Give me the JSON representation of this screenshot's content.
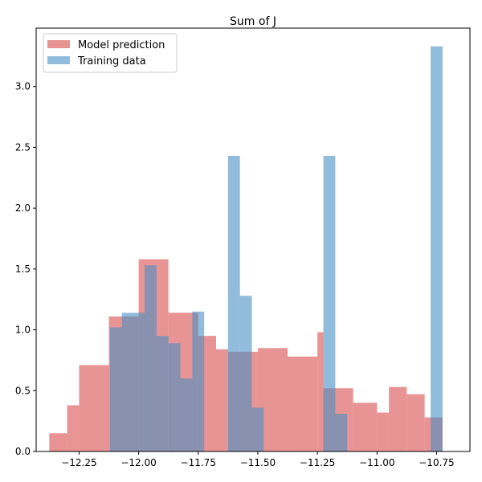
{
  "chart_data": {
    "type": "histogram",
    "title": "Sum of J",
    "xlabel": "",
    "ylabel": "",
    "xlim": [
      -12.43,
      -10.61
    ],
    "ylim": [
      0,
      3.48
    ],
    "grid": false,
    "legend_position": "top-left",
    "x_ticks": [
      -12.25,
      -12.0,
      -11.75,
      -11.5,
      -11.25,
      -11.0,
      -10.75
    ],
    "x_tick_labels": [
      "−12.25",
      "−12.00",
      "−11.75",
      "−11.50",
      "−11.25",
      "−11.00",
      "−10.75"
    ],
    "y_ticks": [
      0.0,
      0.5,
      1.0,
      1.5,
      2.0,
      2.5,
      3.0
    ],
    "y_tick_labels": [
      "0.0",
      "0.5",
      "1.0",
      "1.5",
      "2.0",
      "2.5",
      "3.0"
    ],
    "series": [
      {
        "name": "Model prediction",
        "color": "#e06666",
        "opacity": 0.7,
        "bins": [
          {
            "x0": -12.375,
            "x1": -12.3,
            "value": 0.15
          },
          {
            "x0": -12.3,
            "x1": -12.25,
            "value": 0.38
          },
          {
            "x0": -12.25,
            "x1": -12.125,
            "value": 0.71
          },
          {
            "x0": -12.125,
            "x1": -12.0,
            "value": 1.11
          },
          {
            "x0": -12.0,
            "x1": -11.875,
            "value": 1.58
          },
          {
            "x0": -11.875,
            "x1": -11.75,
            "value": 1.14
          },
          {
            "x0": -11.75,
            "x1": -11.675,
            "value": 0.95
          },
          {
            "x0": -11.675,
            "x1": -11.625,
            "value": 0.84
          },
          {
            "x0": -11.625,
            "x1": -11.5,
            "value": 0.82
          },
          {
            "x0": -11.5,
            "x1": -11.375,
            "value": 0.85
          },
          {
            "x0": -11.375,
            "x1": -11.25,
            "value": 0.78
          },
          {
            "x0": -11.25,
            "x1": -11.225,
            "value": 0.98
          },
          {
            "x0": -11.225,
            "x1": -11.1,
            "value": 0.52
          },
          {
            "x0": -11.1,
            "x1": -11.0,
            "value": 0.4
          },
          {
            "x0": -11.0,
            "x1": -10.95,
            "value": 0.32
          },
          {
            "x0": -10.95,
            "x1": -10.875,
            "value": 0.53
          },
          {
            "x0": -10.875,
            "x1": -10.8,
            "value": 0.47
          },
          {
            "x0": -10.8,
            "x1": -10.725,
            "value": 0.28
          }
        ]
      },
      {
        "name": "Training data",
        "color": "#4a90c4",
        "opacity": 0.6,
        "bins": [
          {
            "x0": -12.12,
            "x1": -12.07,
            "value": 1.02
          },
          {
            "x0": -12.07,
            "x1": -11.975,
            "value": 1.14
          },
          {
            "x0": -11.975,
            "x1": -11.925,
            "value": 1.53
          },
          {
            "x0": -11.925,
            "x1": -11.875,
            "value": 0.95
          },
          {
            "x0": -11.875,
            "x1": -11.825,
            "value": 0.89
          },
          {
            "x0": -11.825,
            "x1": -11.775,
            "value": 0.6
          },
          {
            "x0": -11.775,
            "x1": -11.725,
            "value": 1.15
          },
          {
            "x0": -11.625,
            "x1": -11.575,
            "value": 2.43
          },
          {
            "x0": -11.575,
            "x1": -11.525,
            "value": 1.28
          },
          {
            "x0": -11.525,
            "x1": -11.475,
            "value": 0.36
          },
          {
            "x0": -11.225,
            "x1": -11.175,
            "value": 2.43
          },
          {
            "x0": -11.175,
            "x1": -11.125,
            "value": 0.31
          },
          {
            "x0": -10.775,
            "x1": -10.725,
            "value": 3.33
          }
        ]
      }
    ]
  }
}
